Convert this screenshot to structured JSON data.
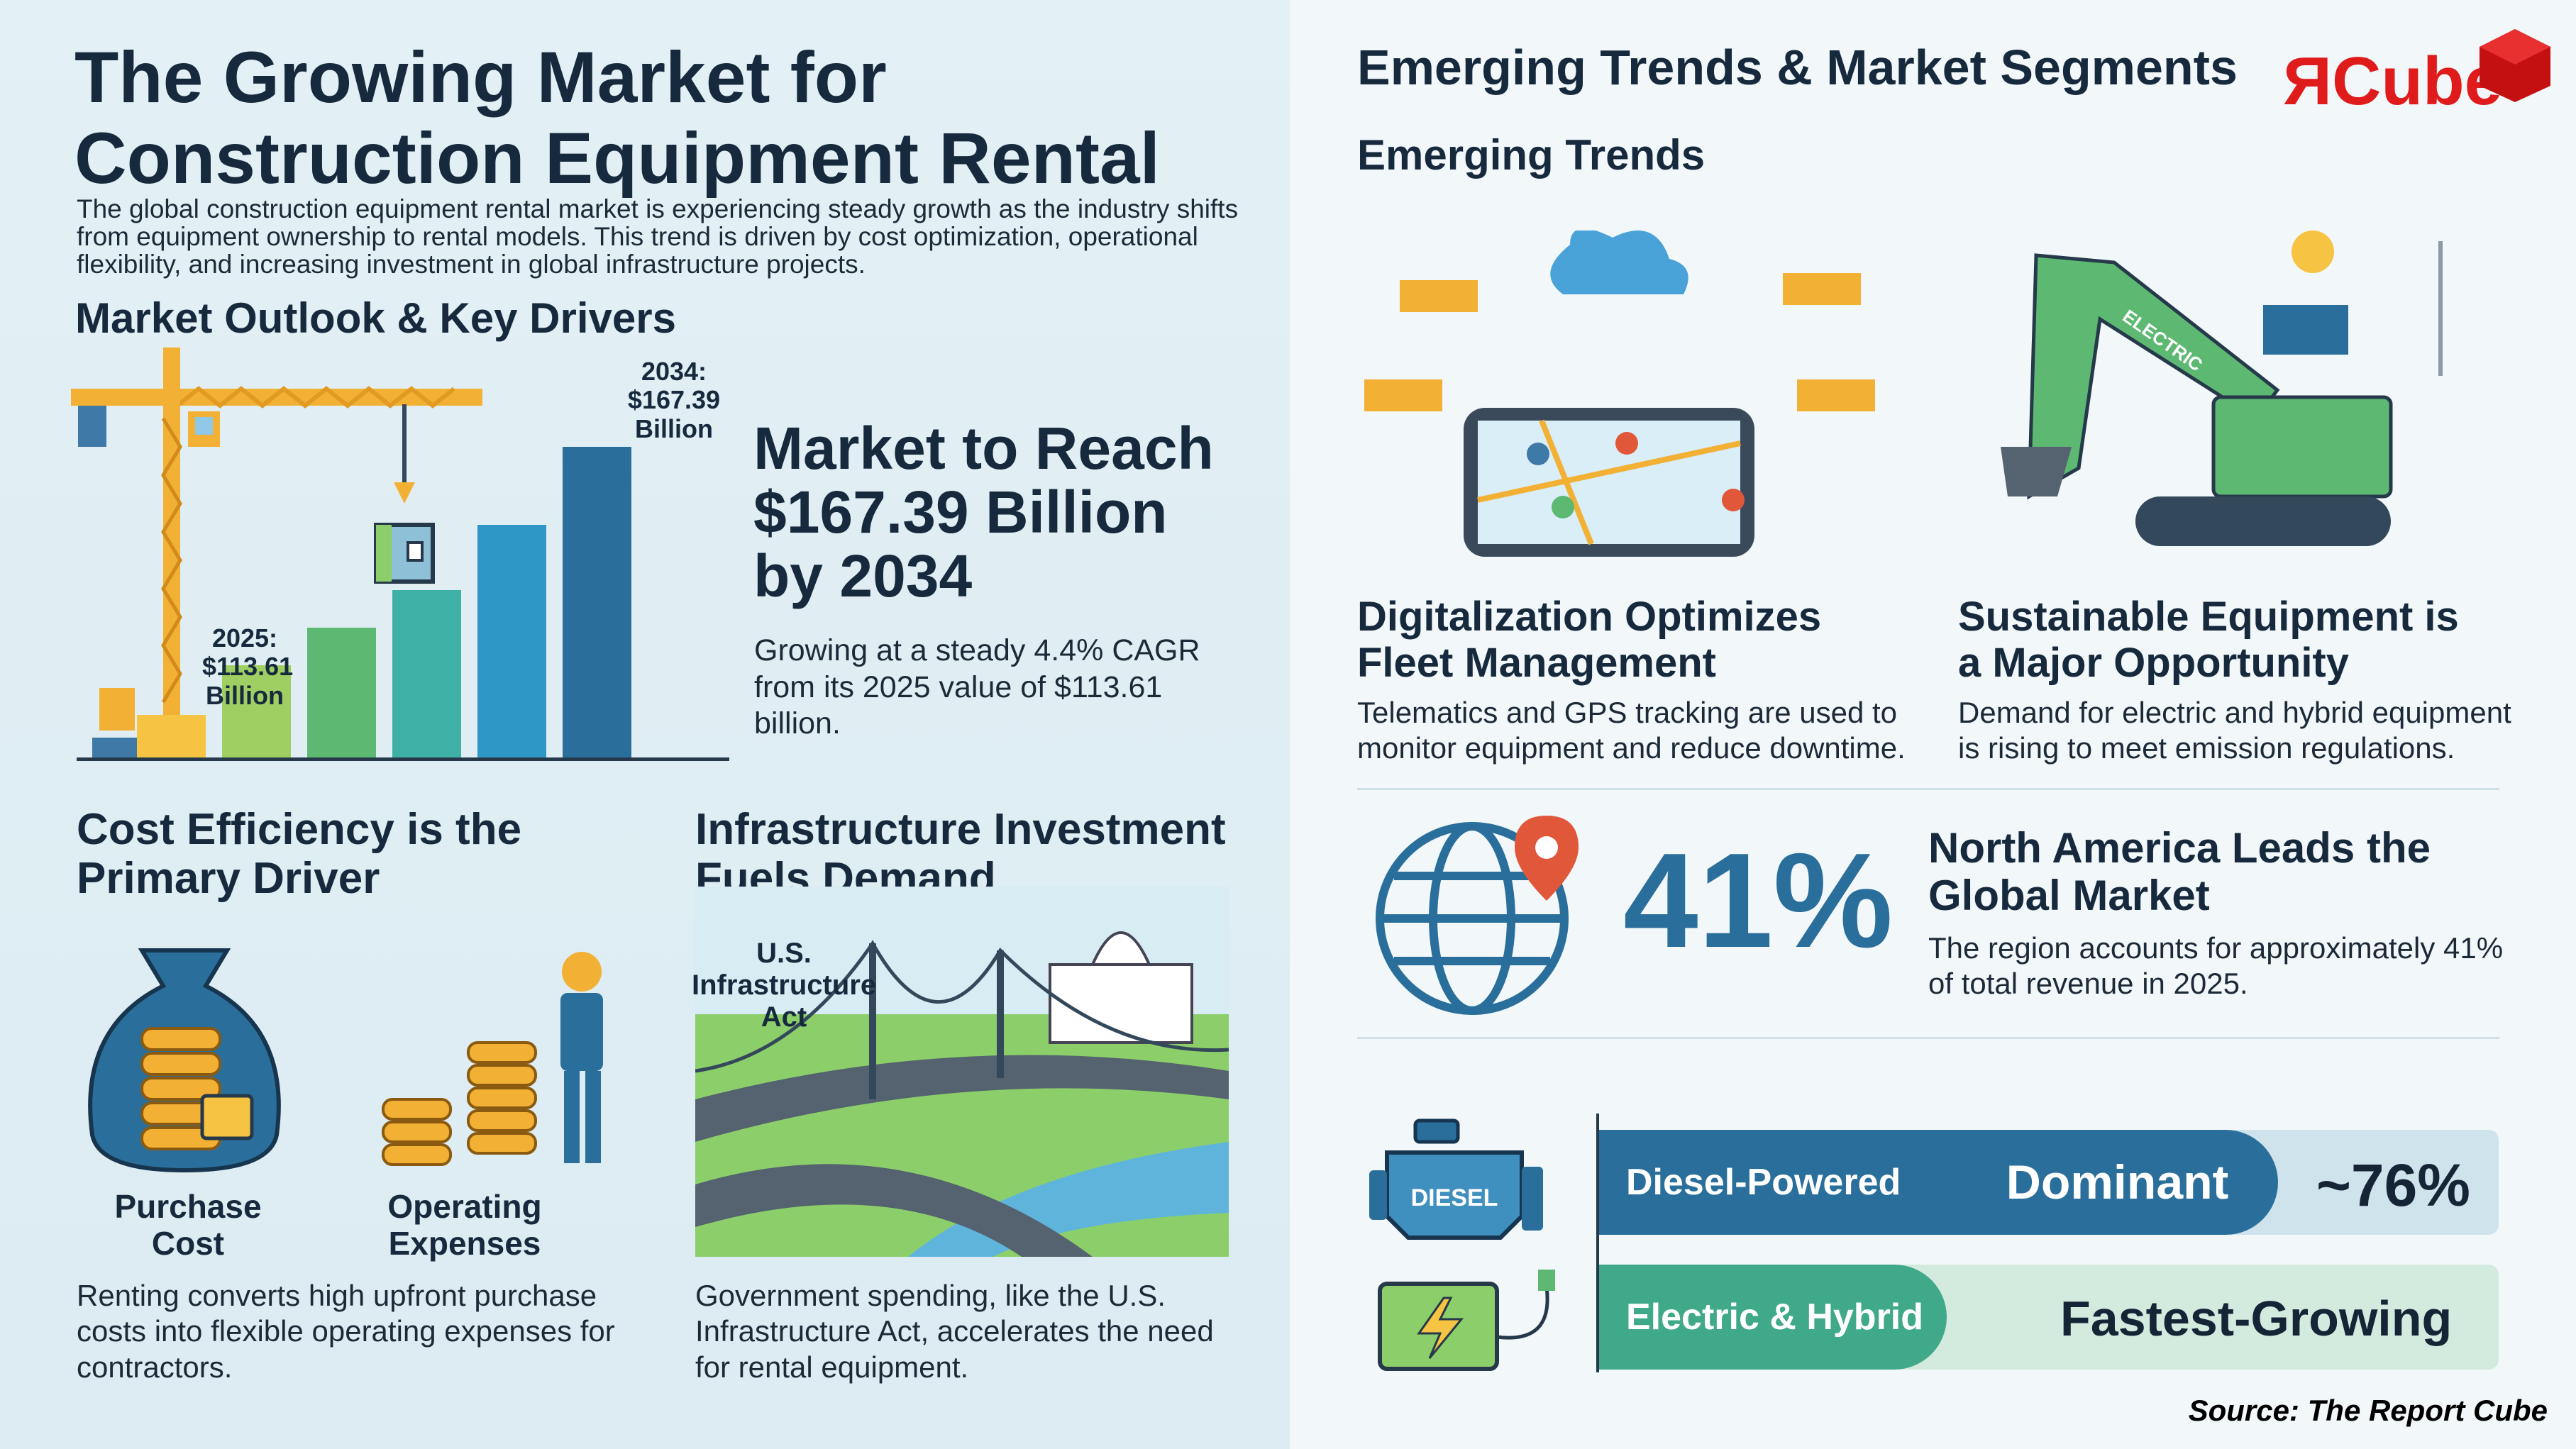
{
  "left": {
    "title_line1": "The Growing Market for",
    "title_line2": "Construction Equipment Rental",
    "intro": "The global construction equipment rental market is experiencing steady growth as the industry shifts from equipment ownership to rental models. This trend is driven by cost optimization, operational flexibility, and increasing investment in global infrastructure projects.",
    "outlook_heading": "Market Outlook & Key Drivers",
    "headline": [
      "Market to Reach",
      "$167.39 Billion",
      "by 2034"
    ],
    "growth_text": "Growing at a steady 4.4% CAGR from its 2025 value of $113.61 billion.",
    "cost_heading": [
      "Cost Efficiency is the",
      "Primary Driver"
    ],
    "purchase_label": [
      "Purchase",
      "Cost"
    ],
    "operating_label": [
      "Operating",
      "Expenses"
    ],
    "cost_text": "Renting converts high upfront purchase costs into flexible operating expenses for contractors.",
    "infra_heading": [
      "Infrastructure Investment",
      "Fuels Demand"
    ],
    "infra_sign": [
      "U.S.",
      "Infrastructure",
      "Act"
    ],
    "infra_text": "Government spending, like the U.S. Infrastructure Act, accelerates the need for rental equipment."
  },
  "chart_data": {
    "type": "bar",
    "labels": {
      "first": [
        "2025:",
        "$113.61",
        "Billion"
      ],
      "last": [
        "2034:",
        "$167.39",
        "Billion"
      ]
    },
    "labeled_values": {
      "2025": 113.61,
      "2034": 167.39
    },
    "bar_levels": [
      0.14,
      0.3,
      0.42,
      0.54,
      0.75,
      1.0
    ],
    "colors": [
      "#f6c343",
      "#9fcf63",
      "#5db872",
      "#3fb0a6",
      "#2f97c6",
      "#2a6f9b"
    ]
  },
  "right": {
    "title": "Emerging Trends & Market Segments",
    "logo": "ЯCube",
    "subtitle": "Emerging Trends",
    "trend1_heading": [
      "Digitalization Optimizes",
      "Fleet Management"
    ],
    "trend1_text": "Telematics and GPS tracking are used to monitor equipment and reduce downtime.",
    "trend2_heading": [
      "Sustainable Equipment is",
      "a Major Opportunity"
    ],
    "trend2_text": "Demand for electric and hybrid equipment is rising to meet emission regulations.",
    "excavator_label": "ELECTRIC",
    "share_value": "41%",
    "region_heading": [
      "North America Leads the",
      "Global Market"
    ],
    "region_text": "The region accounts for approximately 41% of total revenue in 2025.",
    "engine_label": "DIESEL",
    "segments": [
      {
        "name": "Diesel-Powered",
        "status": "Dominant",
        "share": "~76%",
        "share_fraction": 0.76,
        "color": "#2a6f9b"
      },
      {
        "name": "Electric & Hybrid",
        "status": "Fastest-Growing",
        "color": "#3fa98a"
      }
    ],
    "source": "Source: The Report Cube"
  }
}
